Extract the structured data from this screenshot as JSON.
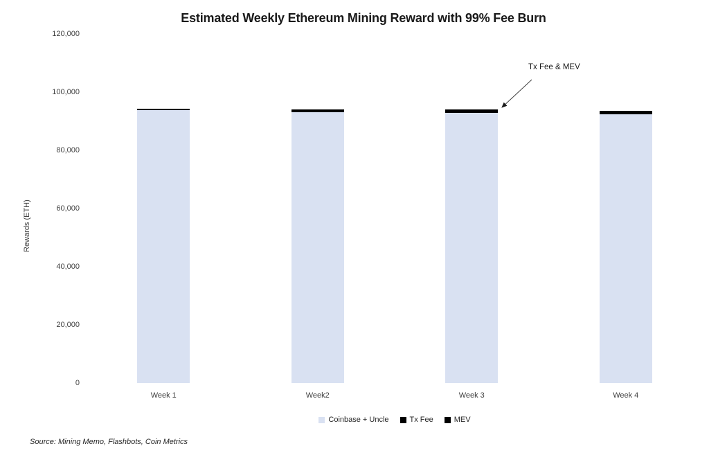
{
  "source_note": "Source: Mining Memo, Flashbots, Coin Metrics",
  "chart_data": {
    "type": "bar",
    "stacked": true,
    "title": "Estimated Weekly Ethereum Mining Reward with 99% Fee Burn",
    "xlabel": "",
    "ylabel": "Rewards (ETH)",
    "categories": [
      "Week 1",
      "Week2",
      "Week 3",
      "Week 4"
    ],
    "series": [
      {
        "name": "Coinbase + Uncle",
        "color": "#d9e1f2",
        "values": [
          93900,
          93050,
          92950,
          92400
        ]
      },
      {
        "name": "Tx Fee",
        "color": "#000000",
        "values": [
          150,
          280,
          310,
          360
        ]
      },
      {
        "name": "MEV",
        "color": "#000000",
        "values": [
          350,
          670,
          740,
          840
        ]
      }
    ],
    "ylim": [
      0,
      120000
    ],
    "yticks": [
      0,
      20000,
      40000,
      60000,
      80000,
      100000,
      120000
    ],
    "ytick_labels": [
      "0",
      "20,000",
      "40,000",
      "60,000",
      "80,000",
      "100,000",
      "120,000"
    ],
    "grid": false,
    "axis_lines": false,
    "legend_position": "bottom",
    "annotation": {
      "text": "Tx Fee & MEV",
      "target_category": "Week 3",
      "arrow_color": "#404040"
    },
    "colors": {
      "title_text": "#1a1a1a",
      "axis_text": "#404040",
      "bar_fill": "#d9e1f2",
      "cap_fill": "#000000",
      "background": "#ffffff"
    }
  }
}
